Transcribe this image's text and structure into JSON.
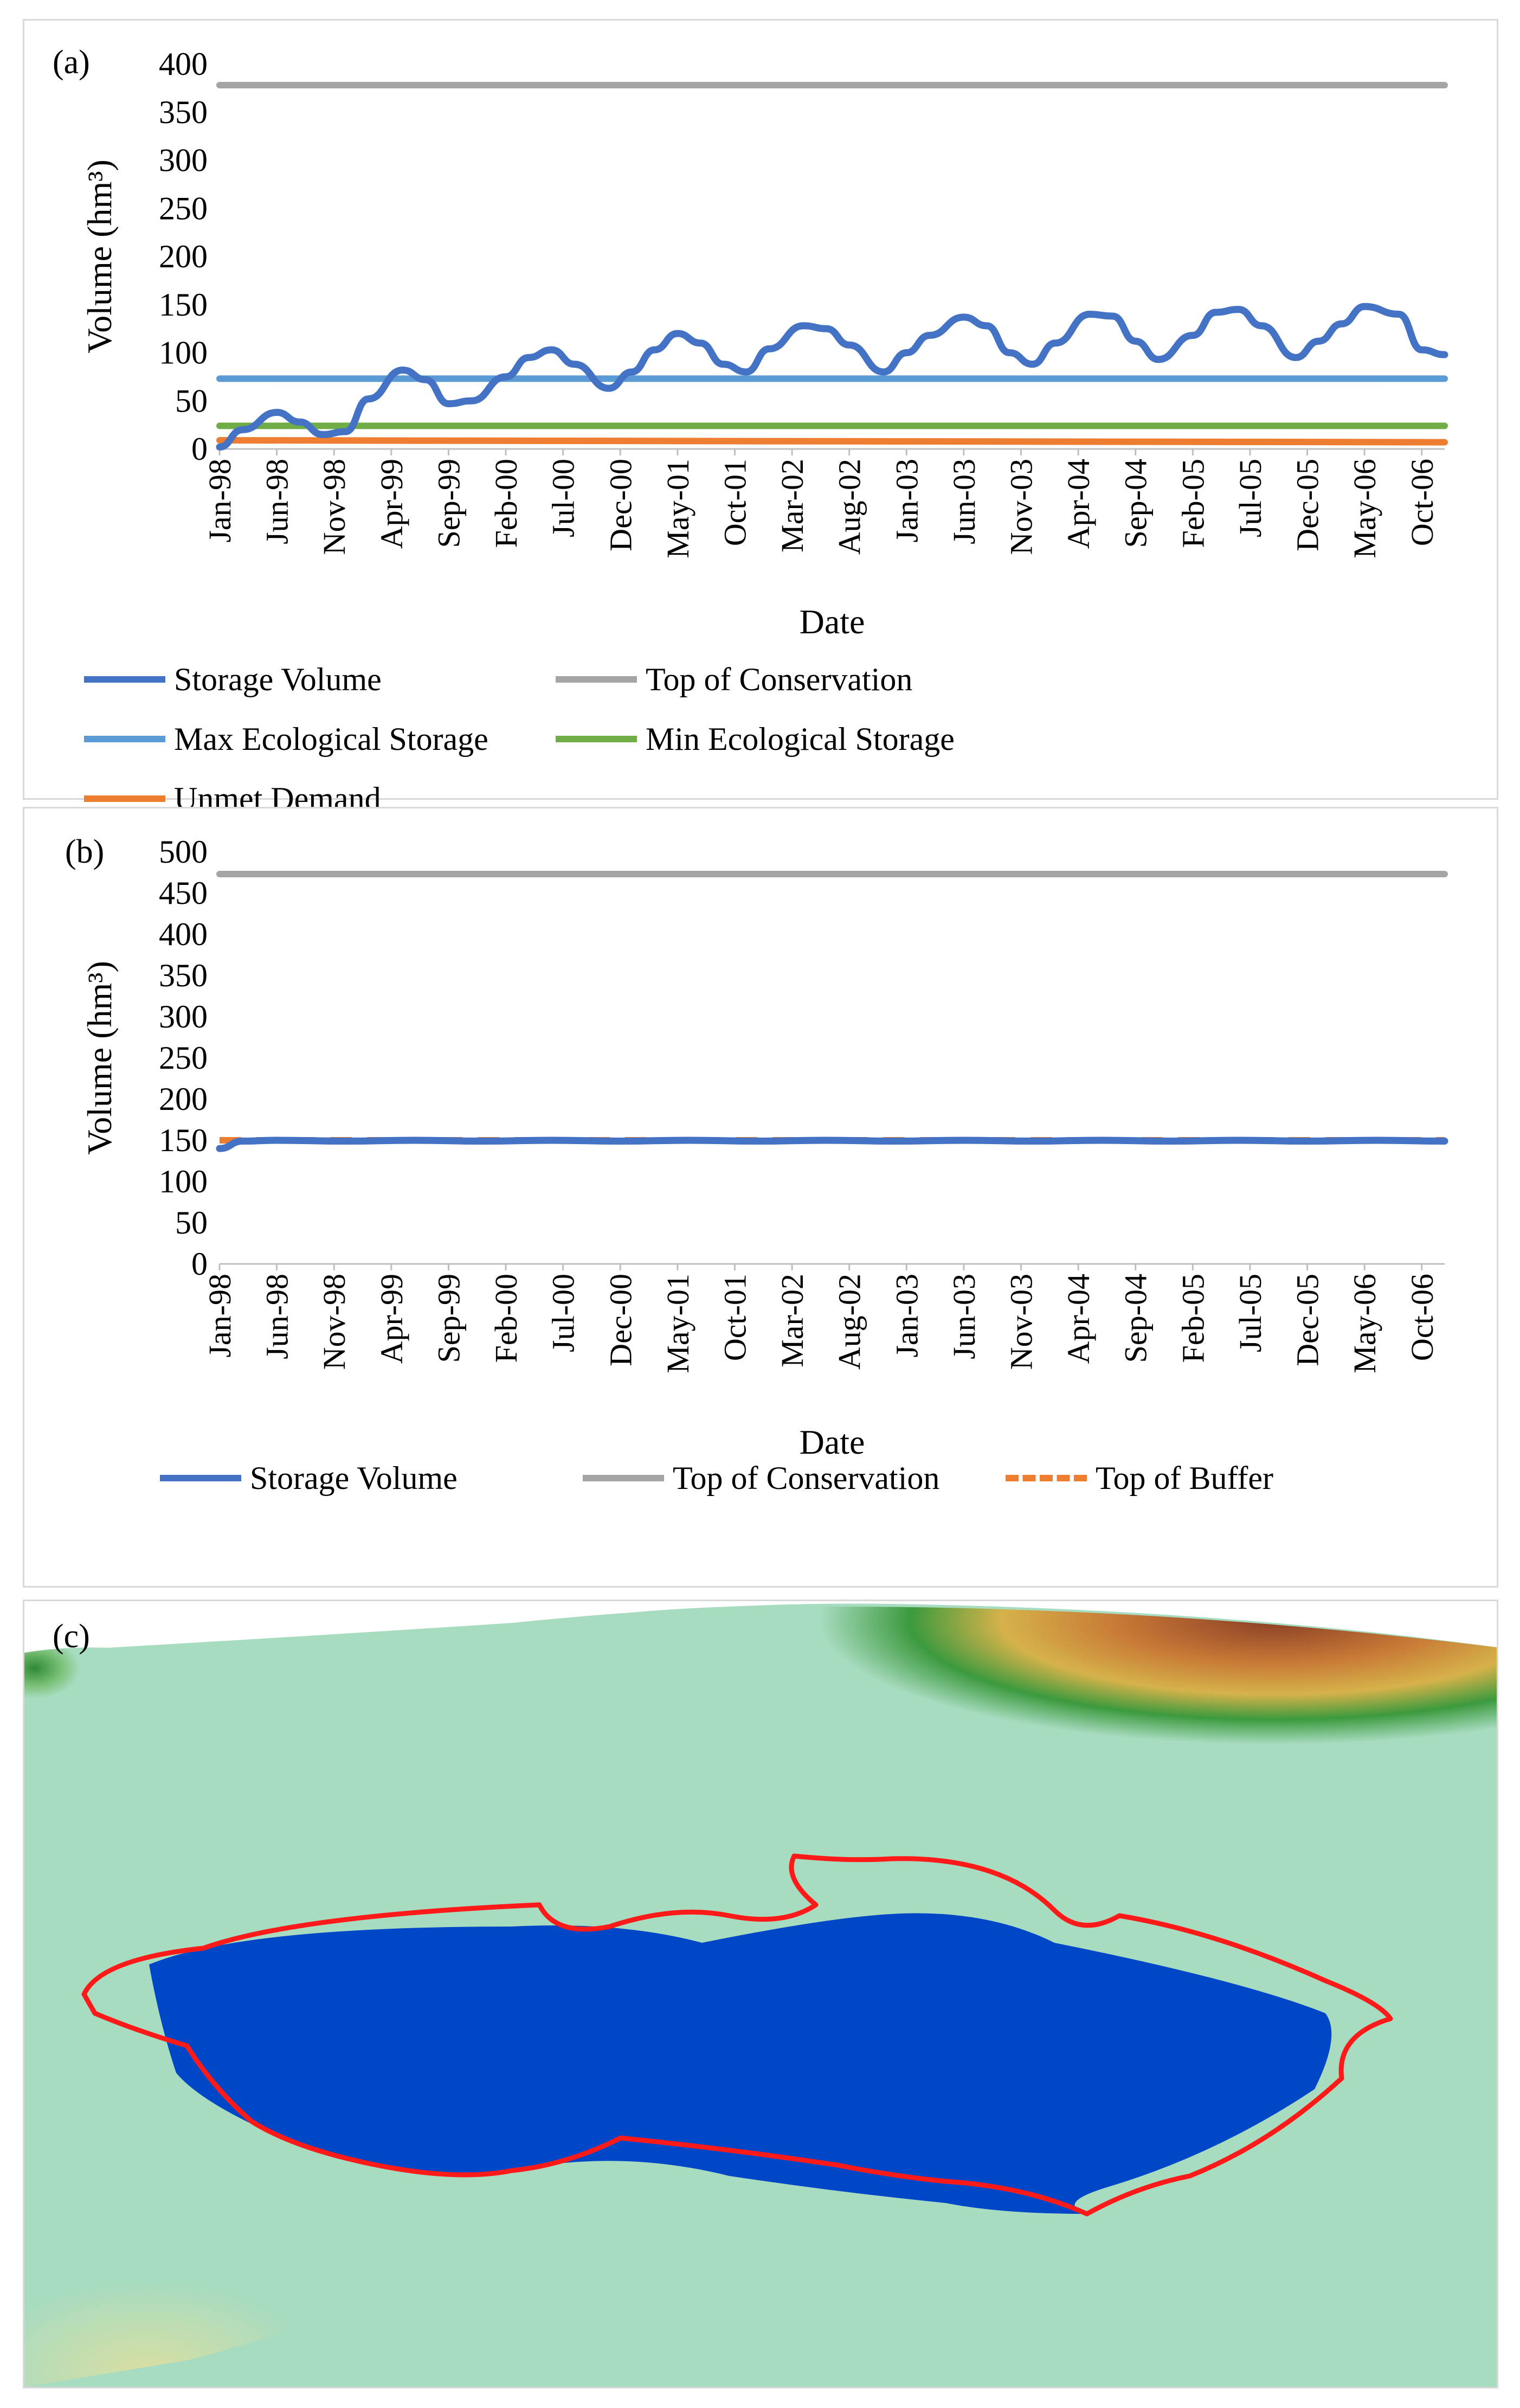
{
  "chart_data": [
    {
      "panel_label": "(a)",
      "type": "line",
      "xlabel": "Date",
      "ylabel": "Volume (hm³)",
      "ylim": [
        0,
        400
      ],
      "yticks": [
        0,
        50,
        100,
        150,
        200,
        250,
        300,
        350,
        400
      ],
      "x_tick_labels": [
        "Jan-98",
        "Jun-98",
        "Nov-98",
        "Apr-99",
        "Sep-99",
        "Feb-00",
        "Jul-00",
        "Dec-00",
        "May-01",
        "Oct-01",
        "Mar-02",
        "Aug-02",
        "Jan-03",
        "Jun-03",
        "Nov-03",
        "Apr-04",
        "Sep-04",
        "Feb-05",
        "Jul-05",
        "Dec-05",
        "May-06",
        "Oct-06"
      ],
      "x_range": [
        "Jan-98",
        "Dec-06"
      ],
      "legend_position": "bottom",
      "series": [
        {
          "name": "Storage Volume",
          "color": "#4472c4",
          "style": "solid",
          "x": [
            "Jan-98",
            "Mar-98",
            "Jun-98",
            "Aug-98",
            "Oct-98",
            "Dec-98",
            "Feb-99",
            "May-99",
            "Jul-99",
            "Sep-99",
            "Nov-99",
            "Feb-00",
            "Apr-00",
            "Jun-00",
            "Aug-00",
            "Nov-00",
            "Jan-01",
            "Mar-01",
            "May-01",
            "Jul-01",
            "Sep-01",
            "Nov-01",
            "Jan-02",
            "Apr-02",
            "Jun-02",
            "Aug-02",
            "Nov-02",
            "Jan-03",
            "Mar-03",
            "Jun-03",
            "Aug-03",
            "Oct-03",
            "Dec-03",
            "Feb-04",
            "May-04",
            "Jul-04",
            "Sep-04",
            "Nov-04",
            "Feb-05",
            "Apr-05",
            "Jun-05",
            "Aug-05",
            "Nov-05",
            "Jan-06",
            "Mar-06",
            "May-06",
            "Aug-06",
            "Oct-06",
            "Dec-06"
          ],
          "values": [
            2,
            20,
            38,
            28,
            15,
            18,
            52,
            82,
            72,
            47,
            50,
            75,
            95,
            103,
            88,
            63,
            80,
            103,
            120,
            110,
            88,
            80,
            104,
            128,
            125,
            108,
            80,
            100,
            118,
            137,
            128,
            100,
            88,
            110,
            140,
            138,
            112,
            93,
            118,
            142,
            145,
            128,
            95,
            112,
            130,
            148,
            140,
            103,
            98
          ]
        },
        {
          "name": "Top of Conservation",
          "color": "#a5a5a5",
          "style": "solid",
          "x": [
            "Jan-98",
            "Dec-06"
          ],
          "values": [
            378,
            378
          ]
        },
        {
          "name": "Max Ecological Storage",
          "color": "#5b9bd5",
          "style": "solid",
          "x": [
            "Jan-98",
            "Dec-06"
          ],
          "values": [
            73,
            73
          ]
        },
        {
          "name": "Min Ecological Storage",
          "color": "#70ad47",
          "style": "solid",
          "x": [
            "Jan-98",
            "Dec-06"
          ],
          "values": [
            24,
            24
          ]
        },
        {
          "name": "Unmet Demand",
          "color": "#ed7d31",
          "style": "solid",
          "x": [
            "Jan-98",
            "Dec-06"
          ],
          "values": [
            9,
            7
          ]
        }
      ]
    },
    {
      "panel_label": "(b)",
      "type": "line",
      "xlabel": "Date",
      "ylabel": "Volume (hm³)",
      "ylim": [
        0,
        500
      ],
      "yticks": [
        0,
        50,
        100,
        150,
        200,
        250,
        300,
        350,
        400,
        450,
        500
      ],
      "x_tick_labels": [
        "Jan-98",
        "Jun-98",
        "Nov-98",
        "Apr-99",
        "Sep-99",
        "Feb-00",
        "Jul-00",
        "Dec-00",
        "May-01",
        "Oct-01",
        "Mar-02",
        "Aug-02",
        "Jan-03",
        "Jun-03",
        "Nov-03",
        "Apr-04",
        "Sep-04",
        "Feb-05",
        "Jul-05",
        "Dec-05",
        "May-06",
        "Oct-06"
      ],
      "x_range": [
        "Jan-98",
        "Dec-06"
      ],
      "legend_position": "bottom",
      "series": [
        {
          "name": "Storage Volume",
          "color": "#4472c4",
          "style": "solid",
          "x": [
            "Jan-98",
            "Mar-98",
            "Jun-98",
            "Dec-98",
            "Jun-99",
            "Dec-99",
            "Jun-00",
            "Dec-00",
            "Jun-01",
            "Dec-01",
            "Jun-02",
            "Dec-02",
            "Jun-03",
            "Dec-03",
            "Jun-04",
            "Dec-04",
            "Jun-05",
            "Dec-05",
            "Jun-06",
            "Dec-06"
          ],
          "values": [
            140,
            149,
            150,
            149,
            150,
            149,
            150,
            149,
            150,
            149,
            150,
            149,
            150,
            149,
            150,
            149,
            150,
            149,
            150,
            149
          ]
        },
        {
          "name": "Top of Conservation",
          "color": "#a5a5a5",
          "style": "solid",
          "x": [
            "Jan-98",
            "Dec-06"
          ],
          "values": [
            473,
            473
          ]
        },
        {
          "name": "Top of Buffer",
          "color": "#ed7d31",
          "style": "dashed",
          "x": [
            "Jan-98",
            "Dec-06"
          ],
          "values": [
            150,
            150
          ]
        }
      ]
    }
  ],
  "map_panel": {
    "panel_label": "(c)",
    "colors": {
      "water": "#0047c8",
      "outline": "#ff0000",
      "low_land": "#a8dcc0",
      "hills": "#3f9a3c",
      "mountains": "#a0512a"
    }
  }
}
